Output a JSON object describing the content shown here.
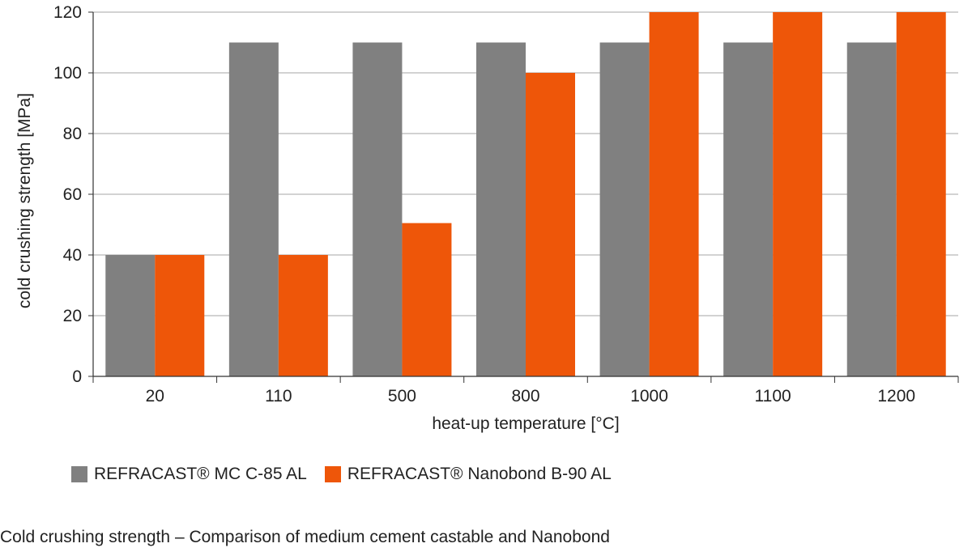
{
  "chart_data": {
    "type": "bar",
    "categories": [
      "20",
      "110",
      "500",
      "800",
      "1000",
      "1100",
      "1200"
    ],
    "series": [
      {
        "name": "REFRACAST® MC C-85 AL",
        "color": "#808080",
        "values": [
          40,
          110,
          110,
          110,
          110,
          110,
          110
        ]
      },
      {
        "name": "REFRACAST® Nanobond B-90 AL",
        "color": "#ee5609",
        "values": [
          40,
          40,
          50.5,
          100,
          120,
          120,
          120
        ]
      }
    ],
    "xlabel": "heat-up temperature [°C]",
    "ylabel": "cold crushing strength [MPa]",
    "ylim": [
      0,
      120
    ],
    "yticks": [
      0,
      20,
      40,
      60,
      80,
      100,
      120
    ],
    "grid": true,
    "legend_position": "bottom-left"
  },
  "legend": {
    "item_1": "REFRACAST® MC C-85 AL",
    "item_2": "REFRACAST® Nanobond B-90 AL",
    "color_1": "#808080",
    "color_2": "#ee5609"
  },
  "caption": "Cold crushing strength – Comparison of medium cement castable and Nanobond"
}
